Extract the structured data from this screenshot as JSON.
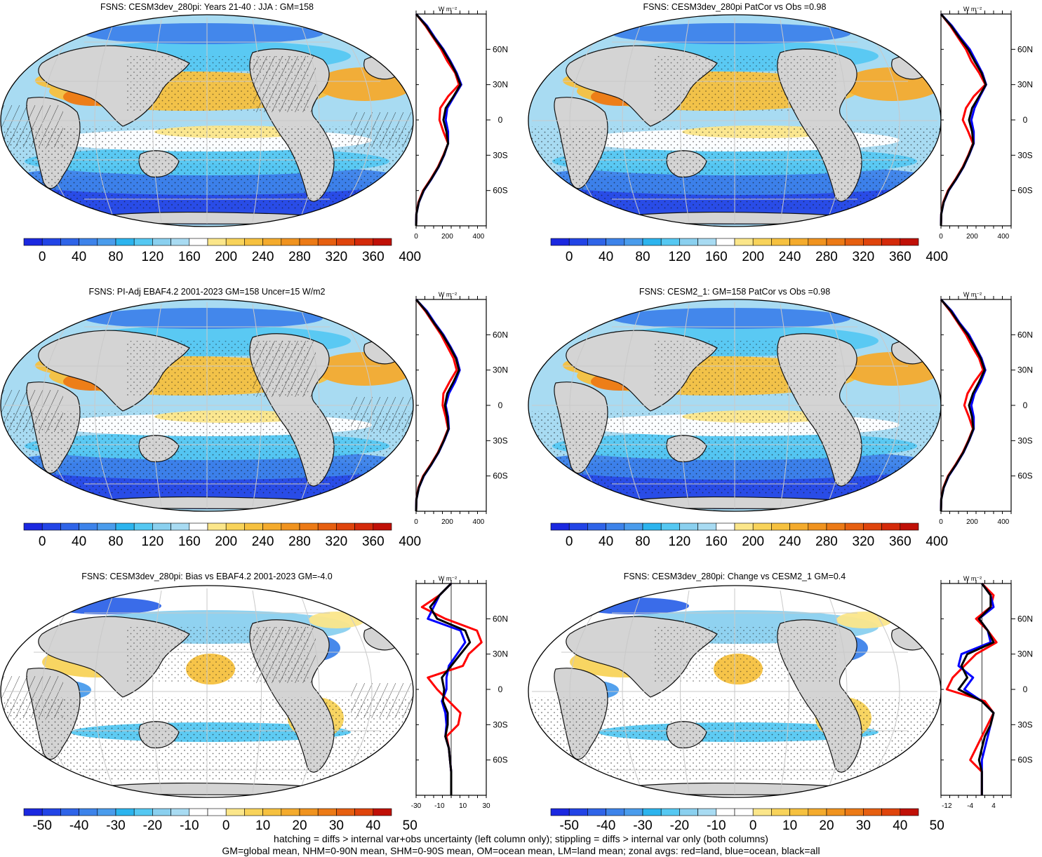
{
  "colors": {
    "abs_scale": [
      "#1b28e0",
      "#2244e6",
      "#2f64e8",
      "#3d83ea",
      "#4a9cec",
      "#2cb4ee",
      "#55c8f2",
      "#8ad0ef",
      "#a8dbf2",
      "#ffffff",
      "#fbe68a",
      "#f8d35a",
      "#f6c13f",
      "#f4ab2d",
      "#f0931f",
      "#ec7a16",
      "#e65f10",
      "#df440c",
      "#d42a0a",
      "#c01007"
    ],
    "diff_scale": [
      "#1b28e0",
      "#2244e6",
      "#2f64e8",
      "#3d83ea",
      "#4a9cec",
      "#2cb4ee",
      "#55c8f2",
      "#8ad0ef",
      "#a8dbf2",
      "#ffffff",
      "#ffffff",
      "#fbe68a",
      "#f8d35a",
      "#f6c13f",
      "#f4ab2d",
      "#f0931f",
      "#ec7a16",
      "#e65f10",
      "#df440c",
      "#c01007"
    ],
    "land": "#d4d4d4",
    "zonal_land": "#ff0000",
    "zonal_ocean": "#0000ff",
    "zonal_all": "#000000"
  },
  "panels": [
    {
      "title": "FSNS: CESM3dev_280pi: Years 21-40 : JJA : GM=158",
      "scale": "abs",
      "colorbar_labels": [
        "0",
        "40",
        "80",
        "120",
        "160",
        "200",
        "240",
        "280",
        "320",
        "360",
        "400"
      ],
      "zonal_unit": "W m⁻²",
      "zonal_xticks": [
        "0",
        "200",
        "400"
      ],
      "zonal_xrange": [
        0,
        450
      ],
      "lat_labels": [
        "60N",
        "30N",
        "0",
        "30S",
        "60S"
      ],
      "hatching": true,
      "zonal_mean": {
        "lat": [
          -90,
          -80,
          -70,
          -60,
          -50,
          -40,
          -30,
          -20,
          -10,
          0,
          10,
          20,
          30,
          40,
          50,
          60,
          70,
          80,
          90
        ],
        "land": [
          0,
          2,
          15,
          45,
          95,
          140,
          175,
          205,
          175,
          150,
          155,
          205,
          275,
          250,
          200,
          160,
          110,
          60,
          0
        ],
        "ocean": [
          0,
          2,
          18,
          50,
          100,
          145,
          180,
          205,
          205,
          190,
          200,
          245,
          290,
          260,
          220,
          175,
          120,
          70,
          0
        ],
        "all": [
          0,
          2,
          17,
          48,
          98,
          143,
          178,
          205,
          195,
          175,
          190,
          240,
          285,
          255,
          215,
          170,
          115,
          65,
          0
        ]
      }
    },
    {
      "title": "FSNS: CESM3dev_280pi PatCor vs Obs =0.98",
      "scale": "abs",
      "colorbar_labels": [
        "0",
        "40",
        "80",
        "120",
        "160",
        "200",
        "240",
        "280",
        "320",
        "360",
        "400"
      ],
      "zonal_unit": "W m⁻²",
      "zonal_xticks": [
        "0",
        "200",
        "400"
      ],
      "zonal_xrange": [
        0,
        450
      ],
      "lat_labels": [
        "60N",
        "30N",
        "0",
        "30S",
        "60S"
      ],
      "hatching": false,
      "zonal_mean": {
        "lat": [
          -90,
          -80,
          -70,
          -60,
          -50,
          -40,
          -30,
          -20,
          -10,
          0,
          10,
          20,
          30,
          40,
          50,
          60,
          70,
          80,
          90
        ],
        "land": [
          0,
          2,
          15,
          45,
          95,
          140,
          175,
          205,
          175,
          140,
          160,
          210,
          285,
          245,
          195,
          160,
          110,
          60,
          0
        ],
        "ocean": [
          0,
          2,
          18,
          50,
          100,
          145,
          180,
          210,
          210,
          195,
          215,
          250,
          290,
          265,
          225,
          185,
          125,
          70,
          0
        ],
        "all": [
          0,
          2,
          17,
          48,
          98,
          143,
          178,
          208,
          200,
          180,
          200,
          245,
          288,
          260,
          215,
          175,
          118,
          65,
          0
        ]
      }
    },
    {
      "title": "FSNS: PI-Adj EBAF4.2 2001-2023 GM=158 Uncer=15 W/m2",
      "scale": "abs",
      "colorbar_labels": [
        "0",
        "40",
        "80",
        "120",
        "160",
        "200",
        "240",
        "280",
        "320",
        "360",
        "400"
      ],
      "zonal_unit": "W m⁻²",
      "zonal_xticks": [
        "0",
        "200",
        "400"
      ],
      "zonal_xrange": [
        0,
        450
      ],
      "lat_labels": [
        "60N",
        "30N",
        "0",
        "30S",
        "60S"
      ],
      "hatching": true,
      "zonal_mean": {
        "lat": [
          -90,
          -80,
          -70,
          -60,
          -50,
          -40,
          -30,
          -20,
          -10,
          0,
          10,
          20,
          30,
          40,
          50,
          60,
          70,
          80,
          90
        ],
        "land": [
          0,
          2,
          15,
          45,
          95,
          140,
          175,
          205,
          190,
          170,
          175,
          215,
          260,
          240,
          200,
          160,
          110,
          60,
          0
        ],
        "ocean": [
          0,
          2,
          18,
          50,
          100,
          145,
          180,
          210,
          205,
          190,
          210,
          250,
          280,
          260,
          220,
          175,
          120,
          70,
          0
        ],
        "all": [
          0,
          2,
          17,
          48,
          98,
          143,
          178,
          208,
          200,
          185,
          200,
          240,
          275,
          255,
          215,
          170,
          115,
          65,
          0
        ]
      }
    },
    {
      "title": "FSNS: CESM2_1: GM=158 PatCor vs Obs =0.98",
      "scale": "abs",
      "colorbar_labels": [
        "0",
        "40",
        "80",
        "120",
        "160",
        "200",
        "240",
        "280",
        "320",
        "360",
        "400"
      ],
      "zonal_unit": "W m⁻²",
      "zonal_xticks": [
        "0",
        "200",
        "400"
      ],
      "zonal_xrange": [
        0,
        450
      ],
      "lat_labels": [
        "60N",
        "30N",
        "0",
        "30S",
        "60S"
      ],
      "hatching": false,
      "zonal_mean": {
        "lat": [
          -90,
          -80,
          -70,
          -60,
          -50,
          -40,
          -30,
          -20,
          -10,
          0,
          10,
          20,
          30,
          40,
          50,
          60,
          70,
          80,
          90
        ],
        "land": [
          0,
          2,
          15,
          45,
          95,
          140,
          175,
          205,
          180,
          150,
          170,
          215,
          270,
          245,
          200,
          160,
          110,
          60,
          0
        ],
        "ocean": [
          0,
          2,
          18,
          50,
          100,
          145,
          180,
          210,
          210,
          195,
          215,
          255,
          285,
          260,
          220,
          180,
          120,
          70,
          0
        ],
        "all": [
          0,
          2,
          17,
          48,
          98,
          143,
          178,
          208,
          200,
          180,
          205,
          245,
          280,
          255,
          215,
          172,
          115,
          65,
          0
        ]
      }
    },
    {
      "title": "FSNS: CESM3dev_280pi: Bias vs EBAF4.2 2001-2023 GM=-4.0",
      "scale": "diff",
      "colorbar_labels": [
        "-50",
        "-40",
        "-30",
        "-20",
        "-10",
        "0",
        "10",
        "20",
        "30",
        "40",
        "50"
      ],
      "zonal_unit": "W m⁻²",
      "zonal_xticks": [
        "-30",
        "-10",
        "10",
        "30"
      ],
      "zonal_xrange": [
        -30,
        30
      ],
      "lat_labels": [
        "60N",
        "30N",
        "0",
        "30S",
        "60S"
      ],
      "hatching": true,
      "zonal_mean": {
        "lat": [
          -90,
          -80,
          -70,
          -60,
          -50,
          -40,
          -30,
          -20,
          -10,
          0,
          10,
          20,
          30,
          40,
          50,
          60,
          70,
          80,
          90
        ],
        "land": [
          0,
          0,
          0,
          -1,
          -2,
          -4,
          6,
          8,
          -2,
          -12,
          -20,
          10,
          15,
          26,
          22,
          -5,
          -25,
          -10,
          0
        ],
        "ocean": [
          0,
          0,
          0,
          -1,
          -2,
          -5,
          -4,
          -5,
          -8,
          -4,
          -4,
          -2,
          5,
          12,
          8,
          -20,
          -15,
          -10,
          0
        ],
        "all": [
          0,
          0,
          0,
          -1,
          -2,
          -5,
          -3,
          -3,
          -7,
          -6,
          -8,
          0,
          8,
          16,
          12,
          -12,
          -18,
          -10,
          0
        ]
      }
    },
    {
      "title": "FSNS: CESM3dev_280pi: Change vs CESM2_1 GM=0.4",
      "scale": "diff",
      "colorbar_labels": [
        "-50",
        "-40",
        "-30",
        "-20",
        "-10",
        "0",
        "10",
        "20",
        "30",
        "40",
        "50"
      ],
      "zonal_unit": "W m⁻²",
      "zonal_xticks": [
        "-12",
        "-4",
        "4"
      ],
      "zonal_xrange": [
        -14,
        10
      ],
      "lat_labels": [
        "60N",
        "30N",
        "0",
        "30S",
        "60S"
      ],
      "hatching": false,
      "zonal_mean": {
        "lat": [
          -90,
          -80,
          -70,
          -60,
          -50,
          -40,
          -30,
          -20,
          -10,
          0,
          10,
          20,
          30,
          40,
          50,
          60,
          70,
          80,
          90
        ],
        "land": [
          0,
          0,
          0,
          -4,
          -2,
          0,
          2,
          4,
          1,
          -12,
          -10,
          -6,
          -2,
          5,
          2,
          -2,
          3,
          4,
          0
        ],
        "ocean": [
          0,
          0,
          0,
          0,
          1,
          2,
          3,
          4,
          0,
          -6,
          -3,
          -8,
          -7,
          3,
          2,
          -1,
          4,
          3,
          0
        ],
        "all": [
          0,
          0,
          0,
          -1,
          0,
          1,
          3,
          4,
          0,
          -8,
          -5,
          -7,
          -5,
          4,
          2,
          -1,
          3,
          3,
          0
        ]
      }
    }
  ],
  "footer": {
    "line1": "hatching = diffs > internal var+obs uncertainty (left column only); stippling = diffs > internal var only (both columns)",
    "line2": "GM=global mean, NHM=0-90N mean, SHM=0-90S mean, OM=ocean mean, LM=land mean; zonal avgs: red=land, blue=ocean, black=all"
  }
}
